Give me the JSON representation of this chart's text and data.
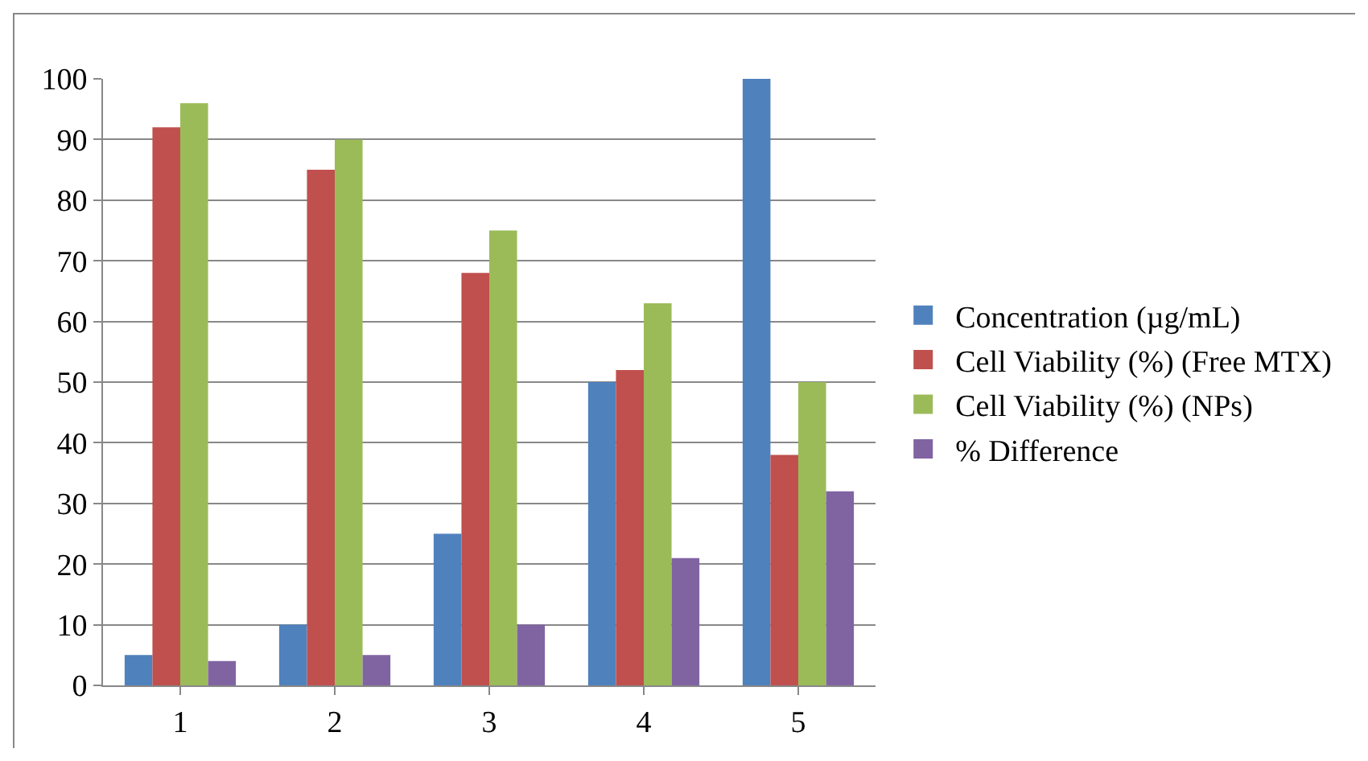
{
  "chart_data": {
    "type": "bar",
    "categories": [
      "1",
      "2",
      "3",
      "4",
      "5"
    ],
    "series": [
      {
        "name": "Concentration (µg/mL)",
        "color": "#4f81bd",
        "values": [
          5,
          10,
          25,
          50,
          100
        ]
      },
      {
        "name": "Cell Viability (%) (Free MTX)",
        "color": "#c0504d",
        "values": [
          92,
          85,
          68,
          52,
          38
        ]
      },
      {
        "name": "Cell Viability (%) (NPs)",
        "color": "#9bbb59",
        "values": [
          96,
          90,
          75,
          63,
          50
        ]
      },
      {
        "name": "% Difference",
        "color": "#8064a2",
        "values": [
          4,
          5,
          10,
          21,
          32
        ]
      }
    ],
    "ylim": [
      0,
      100
    ],
    "yticks": [
      0,
      10,
      20,
      30,
      40,
      50,
      60,
      70,
      80,
      90,
      100
    ],
    "grid": "y",
    "legend": "right"
  }
}
